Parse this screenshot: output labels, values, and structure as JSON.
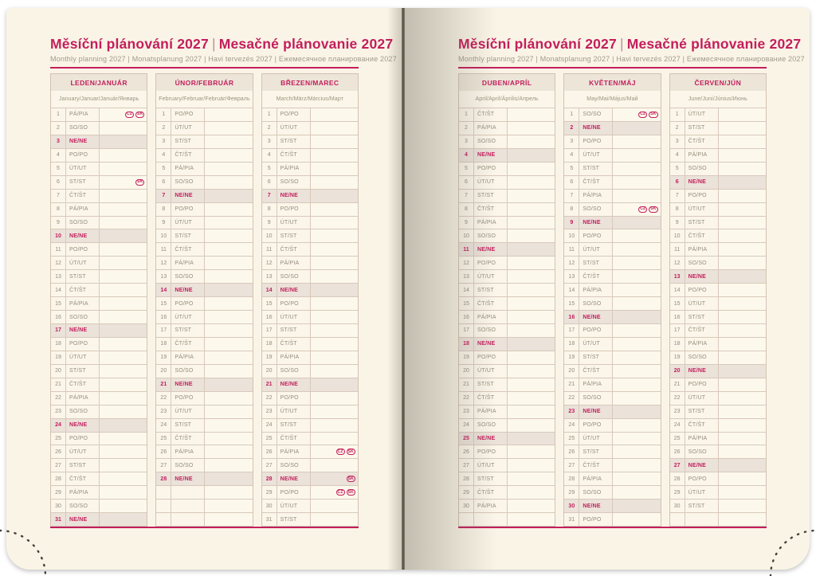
{
  "page_title": {
    "cs": "Měsíční plánování 2027",
    "separator": "|",
    "sk": "Mesačné plánovanie 2027"
  },
  "page_subtitle": "Monthly planning 2027 | Monatsplanung 2027 | Havi tervezés 2027 | Ежемесячное планирование 2027",
  "colors": {
    "accent": "#c31e5c",
    "page_bg": "#faf4e6",
    "header_bg": "#ece5d8",
    "sunday_bg": "#ebe2da",
    "border": "#d2c2b2",
    "text_gray": "#958d7e"
  },
  "badge_labels": {
    "cz": "CZ",
    "sk": "SK"
  },
  "months": [
    {
      "title": "LEDEN/JANUÁR",
      "subtitle": "January/Januar/Január/Январь",
      "trailing_empty_rows": 0,
      "rows": [
        {
          "n": 1,
          "day": "PÁ/PIA",
          "badges": [
            "CZ",
            "SK"
          ]
        },
        {
          "n": 2,
          "day": "SO/SO"
        },
        {
          "n": 3,
          "day": "NE/NE",
          "sun": true
        },
        {
          "n": 4,
          "day": "PO/PO"
        },
        {
          "n": 5,
          "day": "ÚT/UT"
        },
        {
          "n": 6,
          "day": "ST/ST",
          "badges": [
            "SK"
          ]
        },
        {
          "n": 7,
          "day": "ČT/ŠT"
        },
        {
          "n": 8,
          "day": "PÁ/PIA"
        },
        {
          "n": 9,
          "day": "SO/SO"
        },
        {
          "n": 10,
          "day": "NE/NE",
          "sun": true
        },
        {
          "n": 11,
          "day": "PO/PO"
        },
        {
          "n": 12,
          "day": "ÚT/UT"
        },
        {
          "n": 13,
          "day": "ST/ST"
        },
        {
          "n": 14,
          "day": "ČT/ŠT"
        },
        {
          "n": 15,
          "day": "PÁ/PIA"
        },
        {
          "n": 16,
          "day": "SO/SO"
        },
        {
          "n": 17,
          "day": "NE/NE",
          "sun": true
        },
        {
          "n": 18,
          "day": "PO/PO"
        },
        {
          "n": 19,
          "day": "ÚT/UT"
        },
        {
          "n": 20,
          "day": "ST/ST"
        },
        {
          "n": 21,
          "day": "ČT/ŠT"
        },
        {
          "n": 22,
          "day": "PÁ/PIA"
        },
        {
          "n": 23,
          "day": "SO/SO"
        },
        {
          "n": 24,
          "day": "NE/NE",
          "sun": true
        },
        {
          "n": 25,
          "day": "PO/PO"
        },
        {
          "n": 26,
          "day": "ÚT/UT"
        },
        {
          "n": 27,
          "day": "ST/ST"
        },
        {
          "n": 28,
          "day": "ČT/ŠT"
        },
        {
          "n": 29,
          "day": "PÁ/PIA"
        },
        {
          "n": 30,
          "day": "SO/SO"
        },
        {
          "n": 31,
          "day": "NE/NE",
          "sun": true
        }
      ]
    },
    {
      "title": "ÚNOR/FEBRUÁR",
      "subtitle": "February/Februar/Február/Февраль",
      "trailing_empty_rows": 3,
      "rows": [
        {
          "n": 1,
          "day": "PO/PO"
        },
        {
          "n": 2,
          "day": "ÚT/UT"
        },
        {
          "n": 3,
          "day": "ST/ST"
        },
        {
          "n": 4,
          "day": "ČT/ŠT"
        },
        {
          "n": 5,
          "day": "PÁ/PIA"
        },
        {
          "n": 6,
          "day": "SO/SO"
        },
        {
          "n": 7,
          "day": "NE/NE",
          "sun": true
        },
        {
          "n": 8,
          "day": "PO/PO"
        },
        {
          "n": 9,
          "day": "ÚT/UT"
        },
        {
          "n": 10,
          "day": "ST/ST"
        },
        {
          "n": 11,
          "day": "ČT/ŠT"
        },
        {
          "n": 12,
          "day": "PÁ/PIA"
        },
        {
          "n": 13,
          "day": "SO/SO"
        },
        {
          "n": 14,
          "day": "NE/NE",
          "sun": true
        },
        {
          "n": 15,
          "day": "PO/PO"
        },
        {
          "n": 16,
          "day": "ÚT/UT"
        },
        {
          "n": 17,
          "day": "ST/ST"
        },
        {
          "n": 18,
          "day": "ČT/ŠT"
        },
        {
          "n": 19,
          "day": "PÁ/PIA"
        },
        {
          "n": 20,
          "day": "SO/SO"
        },
        {
          "n": 21,
          "day": "NE/NE",
          "sun": true
        },
        {
          "n": 22,
          "day": "PO/PO"
        },
        {
          "n": 23,
          "day": "ÚT/UT"
        },
        {
          "n": 24,
          "day": "ST/ST"
        },
        {
          "n": 25,
          "day": "ČT/ŠT"
        },
        {
          "n": 26,
          "day": "PÁ/PIA"
        },
        {
          "n": 27,
          "day": "SO/SO"
        },
        {
          "n": 28,
          "day": "NE/NE",
          "sun": true
        }
      ]
    },
    {
      "title": "BŘEZEN/MAREC",
      "subtitle": "March/März/Március/Март",
      "trailing_empty_rows": 0,
      "rows": [
        {
          "n": 1,
          "day": "PO/PO"
        },
        {
          "n": 2,
          "day": "ÚT/UT"
        },
        {
          "n": 3,
          "day": "ST/ST"
        },
        {
          "n": 4,
          "day": "ČT/ŠT"
        },
        {
          "n": 5,
          "day": "PÁ/PIA"
        },
        {
          "n": 6,
          "day": "SO/SO"
        },
        {
          "n": 7,
          "day": "NE/NE",
          "sun": true
        },
        {
          "n": 8,
          "day": "PO/PO"
        },
        {
          "n": 9,
          "day": "ÚT/UT"
        },
        {
          "n": 10,
          "day": "ST/ST"
        },
        {
          "n": 11,
          "day": "ČT/ŠT"
        },
        {
          "n": 12,
          "day": "PÁ/PIA"
        },
        {
          "n": 13,
          "day": "SO/SO"
        },
        {
          "n": 14,
          "day": "NE/NE",
          "sun": true
        },
        {
          "n": 15,
          "day": "PO/PO"
        },
        {
          "n": 16,
          "day": "ÚT/UT"
        },
        {
          "n": 17,
          "day": "ST/ST"
        },
        {
          "n": 18,
          "day": "ČT/ŠT"
        },
        {
          "n": 19,
          "day": "PÁ/PIA"
        },
        {
          "n": 20,
          "day": "SO/SO"
        },
        {
          "n": 21,
          "day": "NE/NE",
          "sun": true
        },
        {
          "n": 22,
          "day": "PO/PO"
        },
        {
          "n": 23,
          "day": "ÚT/UT"
        },
        {
          "n": 24,
          "day": "ST/ST"
        },
        {
          "n": 25,
          "day": "ČT/ŠT"
        },
        {
          "n": 26,
          "day": "PÁ/PIA",
          "badges": [
            "CZ",
            "SK"
          ]
        },
        {
          "n": 27,
          "day": "SO/SO"
        },
        {
          "n": 28,
          "day": "NE/NE",
          "sun": true,
          "badges": [
            "SK"
          ]
        },
        {
          "n": 29,
          "day": "PO/PO",
          "badges": [
            "CZ",
            "SK"
          ]
        },
        {
          "n": 30,
          "day": "ÚT/UT"
        },
        {
          "n": 31,
          "day": "ST/ST"
        }
      ]
    },
    {
      "title": "DUBEN/APRÍL",
      "subtitle": "April/April/Április/Апрель",
      "trailing_empty_rows": 1,
      "rows": [
        {
          "n": 1,
          "day": "ČT/ŠT"
        },
        {
          "n": 2,
          "day": "PÁ/PIA"
        },
        {
          "n": 3,
          "day": "SO/SO"
        },
        {
          "n": 4,
          "day": "NE/NE",
          "sun": true
        },
        {
          "n": 5,
          "day": "PO/PO"
        },
        {
          "n": 6,
          "day": "ÚT/UT"
        },
        {
          "n": 7,
          "day": "ST/ST"
        },
        {
          "n": 8,
          "day": "ČT/ŠT"
        },
        {
          "n": 9,
          "day": "PÁ/PIA"
        },
        {
          "n": 10,
          "day": "SO/SO"
        },
        {
          "n": 11,
          "day": "NE/NE",
          "sun": true
        },
        {
          "n": 12,
          "day": "PO/PO"
        },
        {
          "n": 13,
          "day": "ÚT/UT"
        },
        {
          "n": 14,
          "day": "ST/ST"
        },
        {
          "n": 15,
          "day": "ČT/ŠT"
        },
        {
          "n": 16,
          "day": "PÁ/PIA"
        },
        {
          "n": 17,
          "day": "SO/SO"
        },
        {
          "n": 18,
          "day": "NE/NE",
          "sun": true
        },
        {
          "n": 19,
          "day": "PO/PO"
        },
        {
          "n": 20,
          "day": "ÚT/UT"
        },
        {
          "n": 21,
          "day": "ST/ST"
        },
        {
          "n": 22,
          "day": "ČT/ŠT"
        },
        {
          "n": 23,
          "day": "PÁ/PIA"
        },
        {
          "n": 24,
          "day": "SO/SO"
        },
        {
          "n": 25,
          "day": "NE/NE",
          "sun": true
        },
        {
          "n": 26,
          "day": "PO/PO"
        },
        {
          "n": 27,
          "day": "ÚT/UT"
        },
        {
          "n": 28,
          "day": "ST/ST"
        },
        {
          "n": 29,
          "day": "ČT/ŠT"
        },
        {
          "n": 30,
          "day": "PÁ/PIA"
        }
      ]
    },
    {
      "title": "KVĚTEN/MÁJ",
      "subtitle": "May/Mai/Május/Май",
      "trailing_empty_rows": 0,
      "rows": [
        {
          "n": 1,
          "day": "SO/SO",
          "badges": [
            "CZ",
            "SK"
          ]
        },
        {
          "n": 2,
          "day": "NE/NE",
          "sun": true
        },
        {
          "n": 3,
          "day": "PO/PO"
        },
        {
          "n": 4,
          "day": "ÚT/UT"
        },
        {
          "n": 5,
          "day": "ST/ST"
        },
        {
          "n": 6,
          "day": "ČT/ŠT"
        },
        {
          "n": 7,
          "day": "PÁ/PIA"
        },
        {
          "n": 8,
          "day": "SO/SO",
          "badges": [
            "CZ",
            "SK"
          ]
        },
        {
          "n": 9,
          "day": "NE/NE",
          "sun": true
        },
        {
          "n": 10,
          "day": "PO/PO"
        },
        {
          "n": 11,
          "day": "ÚT/UT"
        },
        {
          "n": 12,
          "day": "ST/ST"
        },
        {
          "n": 13,
          "day": "ČT/ŠT"
        },
        {
          "n": 14,
          "day": "PÁ/PIA"
        },
        {
          "n": 15,
          "day": "SO/SO"
        },
        {
          "n": 16,
          "day": "NE/NE",
          "sun": true
        },
        {
          "n": 17,
          "day": "PO/PO"
        },
        {
          "n": 18,
          "day": "ÚT/UT"
        },
        {
          "n": 19,
          "day": "ST/ST"
        },
        {
          "n": 20,
          "day": "ČT/ŠT"
        },
        {
          "n": 21,
          "day": "PÁ/PIA"
        },
        {
          "n": 22,
          "day": "SO/SO"
        },
        {
          "n": 23,
          "day": "NE/NE",
          "sun": true
        },
        {
          "n": 24,
          "day": "PO/PO"
        },
        {
          "n": 25,
          "day": "ÚT/UT"
        },
        {
          "n": 26,
          "day": "ST/ST"
        },
        {
          "n": 27,
          "day": "ČT/ŠT"
        },
        {
          "n": 28,
          "day": "PÁ/PIA"
        },
        {
          "n": 29,
          "day": "SO/SO"
        },
        {
          "n": 30,
          "day": "NE/NE",
          "sun": true
        },
        {
          "n": 31,
          "day": "PO/PO"
        }
      ]
    },
    {
      "title": "ČERVEN/JÚN",
      "subtitle": "June/Juni/Június/Июнь",
      "trailing_empty_rows": 1,
      "rows": [
        {
          "n": 1,
          "day": "ÚT/UT"
        },
        {
          "n": 2,
          "day": "ST/ST"
        },
        {
          "n": 3,
          "day": "ČT/ŠT"
        },
        {
          "n": 4,
          "day": "PÁ/PIA"
        },
        {
          "n": 5,
          "day": "SO/SO"
        },
        {
          "n": 6,
          "day": "NE/NE",
          "sun": true
        },
        {
          "n": 7,
          "day": "PO/PO"
        },
        {
          "n": 8,
          "day": "ÚT/UT"
        },
        {
          "n": 9,
          "day": "ST/ST"
        },
        {
          "n": 10,
          "day": "ČT/ŠT"
        },
        {
          "n": 11,
          "day": "PÁ/PIA"
        },
        {
          "n": 12,
          "day": "SO/SO"
        },
        {
          "n": 13,
          "day": "NE/NE",
          "sun": true
        },
        {
          "n": 14,
          "day": "PO/PO"
        },
        {
          "n": 15,
          "day": "ÚT/UT"
        },
        {
          "n": 16,
          "day": "ST/ST"
        },
        {
          "n": 17,
          "day": "ČT/ŠT"
        },
        {
          "n": 18,
          "day": "PÁ/PIA"
        },
        {
          "n": 19,
          "day": "SO/SO"
        },
        {
          "n": 20,
          "day": "NE/NE",
          "sun": true
        },
        {
          "n": 21,
          "day": "PO/PO"
        },
        {
          "n": 22,
          "day": "ÚT/UT"
        },
        {
          "n": 23,
          "day": "ST/ST"
        },
        {
          "n": 24,
          "day": "ČT/ŠT"
        },
        {
          "n": 25,
          "day": "PÁ/PIA"
        },
        {
          "n": 26,
          "day": "SO/SO"
        },
        {
          "n": 27,
          "day": "NE/NE",
          "sun": true
        },
        {
          "n": 28,
          "day": "PO/PO"
        },
        {
          "n": 29,
          "day": "ÚT/UT"
        },
        {
          "n": 30,
          "day": "ST/ST"
        }
      ]
    }
  ]
}
